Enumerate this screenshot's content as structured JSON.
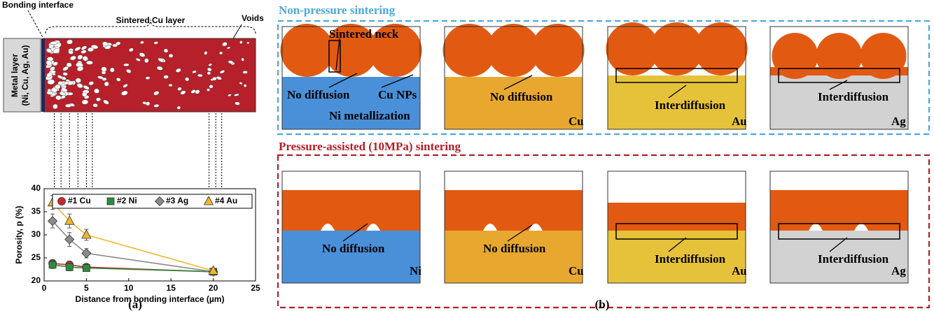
{
  "panel_a": {
    "labels": {
      "bonding_interface": "Bonding interface",
      "sintered_layer": "Sintered Cu layer",
      "voids": "Voids",
      "metal_layer": "Metal layer",
      "metal_list": "(Ni, Cu, Ag, Au)"
    },
    "caption": "(a)"
  },
  "chart_data": {
    "type": "line",
    "x_label": "Distance from bonding interface (µm)",
    "y_label": "Porosity, p (%)",
    "xlim": [
      0,
      25
    ],
    "xticks": [
      0,
      5,
      10,
      15,
      20,
      25
    ],
    "ylim": [
      20,
      40
    ],
    "yticks": [
      20,
      25,
      30,
      35,
      40
    ],
    "legend": "top",
    "series": [
      {
        "name": "#1 Cu",
        "color": "#c8282d",
        "marker": "circle",
        "x": [
          1,
          3,
          5,
          20
        ],
        "values": [
          23.8,
          23.5,
          23,
          22
        ],
        "errors": [
          0.8,
          0.8,
          0.6,
          0.5
        ]
      },
      {
        "name": "#2 Ni",
        "color": "#2e8b3a",
        "marker": "square",
        "x": [
          1,
          3,
          5,
          20
        ],
        "values": [
          23.5,
          23,
          22.8,
          22
        ],
        "errors": [
          0.8,
          0.8,
          0.6,
          0.5
        ]
      },
      {
        "name": "#3 Ag",
        "color": "#8a8a8a",
        "marker": "diamond",
        "x": [
          1,
          3,
          5,
          20
        ],
        "values": [
          33,
          29,
          26,
          22
        ],
        "errors": [
          1.5,
          1.5,
          1,
          0.5
        ]
      },
      {
        "name": "#4 Au",
        "color": "#f0b830",
        "marker": "triangle",
        "x": [
          1,
          3,
          5,
          20
        ],
        "values": [
          37,
          33,
          30,
          22.2
        ],
        "errors": [
          1.5,
          1.5,
          1.2,
          0.5
        ]
      }
    ]
  },
  "panel_b": {
    "caption": "(b)",
    "rows": [
      {
        "title": "Non-pressure sintering",
        "images": [
          {
            "labels": [
              "Sintered neck",
              "No diffusion",
              "Cu NPs",
              "Ni metallization"
            ]
          },
          {
            "labels": [
              "No diffusion",
              "Cu"
            ]
          },
          {
            "labels": [
              "Interdiffusion",
              "Au"
            ]
          },
          {
            "labels": [
              "Interdiffusion",
              "Ag"
            ]
          }
        ]
      },
      {
        "title": "Pressure-assisted (10MPa) sintering",
        "images": [
          {
            "labels": [
              "No diffusion",
              "Ni"
            ]
          },
          {
            "labels": [
              "No diffusion",
              "Cu"
            ]
          },
          {
            "labels": [
              "Interdiffusion",
              "Au"
            ]
          },
          {
            "labels": [
              "Interdiffusion",
              "Ag"
            ]
          }
        ]
      }
    ]
  }
}
